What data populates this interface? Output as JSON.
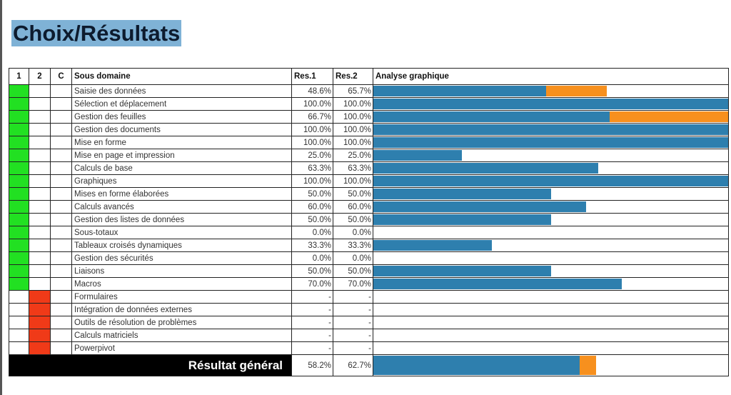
{
  "title": "Choix/Résultats",
  "headers": {
    "c1": "1",
    "c2": "2",
    "cc": "C",
    "domain": "Sous domaine",
    "res1": "Res.1",
    "res2": "Res.2",
    "graph": "Analyse graphique"
  },
  "colors": {
    "res1": "#2e7fae",
    "res2": "#f7901e",
    "chosen": "#22e022",
    "notchosen": "#f03a18"
  },
  "rows": [
    {
      "label": "Saisie des données",
      "res1": "48.6%",
      "res2": "65.7%",
      "v1": 48.6,
      "v2": 65.7,
      "col": "1"
    },
    {
      "label": "Sélection et déplacement",
      "res1": "100.0%",
      "res2": "100.0%",
      "v1": 100,
      "v2": 100,
      "col": "1"
    },
    {
      "label": "Gestion des feuilles",
      "res1": "66.7%",
      "res2": "100.0%",
      "v1": 66.7,
      "v2": 100,
      "col": "1"
    },
    {
      "label": "Gestion des documents",
      "res1": "100.0%",
      "res2": "100.0%",
      "v1": 100,
      "v2": 100,
      "col": "1"
    },
    {
      "label": "Mise en forme",
      "res1": "100.0%",
      "res2": "100.0%",
      "v1": 100,
      "v2": 100,
      "col": "1"
    },
    {
      "label": "Mise en page et impression",
      "res1": "25.0%",
      "res2": "25.0%",
      "v1": 25,
      "v2": 25,
      "col": "1"
    },
    {
      "label": "Calculs de base",
      "res1": "63.3%",
      "res2": "63.3%",
      "v1": 63.3,
      "v2": 63.3,
      "col": "1"
    },
    {
      "label": "Graphiques",
      "res1": "100.0%",
      "res2": "100.0%",
      "v1": 100,
      "v2": 100,
      "col": "1"
    },
    {
      "label": "Mises en forme élaborées",
      "res1": "50.0%",
      "res2": "50.0%",
      "v1": 50,
      "v2": 50,
      "col": "1"
    },
    {
      "label": "Calculs avancés",
      "res1": "60.0%",
      "res2": "60.0%",
      "v1": 60,
      "v2": 60,
      "col": "1"
    },
    {
      "label": "Gestion des listes de données",
      "res1": "50.0%",
      "res2": "50.0%",
      "v1": 50,
      "v2": 50,
      "col": "1"
    },
    {
      "label": "Sous-totaux",
      "res1": "0.0%",
      "res2": "0.0%",
      "v1": 0,
      "v2": 0,
      "col": "1"
    },
    {
      "label": "Tableaux croisés dynamiques",
      "res1": "33.3%",
      "res2": "33.3%",
      "v1": 33.3,
      "v2": 33.3,
      "col": "1"
    },
    {
      "label": "Gestion des sécurités",
      "res1": "0.0%",
      "res2": "0.0%",
      "v1": 0,
      "v2": 0,
      "col": "1"
    },
    {
      "label": "Liaisons",
      "res1": "50.0%",
      "res2": "50.0%",
      "v1": 50,
      "v2": 50,
      "col": "1"
    },
    {
      "label": "Macros",
      "res1": "70.0%",
      "res2": "70.0%",
      "v1": 70,
      "v2": 70,
      "col": "1"
    },
    {
      "label": "Formulaires",
      "res1": "-",
      "res2": "-",
      "v1": 0,
      "v2": 0,
      "col": "2"
    },
    {
      "label": "Intégration de données externes",
      "res1": "-",
      "res2": "-",
      "v1": 0,
      "v2": 0,
      "col": "2"
    },
    {
      "label": "Outils de résolution de problèmes",
      "res1": "-",
      "res2": "-",
      "v1": 0,
      "v2": 0,
      "col": "2"
    },
    {
      "label": "Calculs matriciels",
      "res1": "-",
      "res2": "-",
      "v1": 0,
      "v2": 0,
      "col": "2"
    },
    {
      "label": "Powerpivot",
      "res1": "-",
      "res2": "-",
      "v1": 0,
      "v2": 0,
      "col": "2"
    }
  ],
  "total": {
    "label": "Résultat général",
    "res1": "58.2%",
    "res2": "62.7%",
    "v1": 58.2,
    "v2": 62.7
  }
}
